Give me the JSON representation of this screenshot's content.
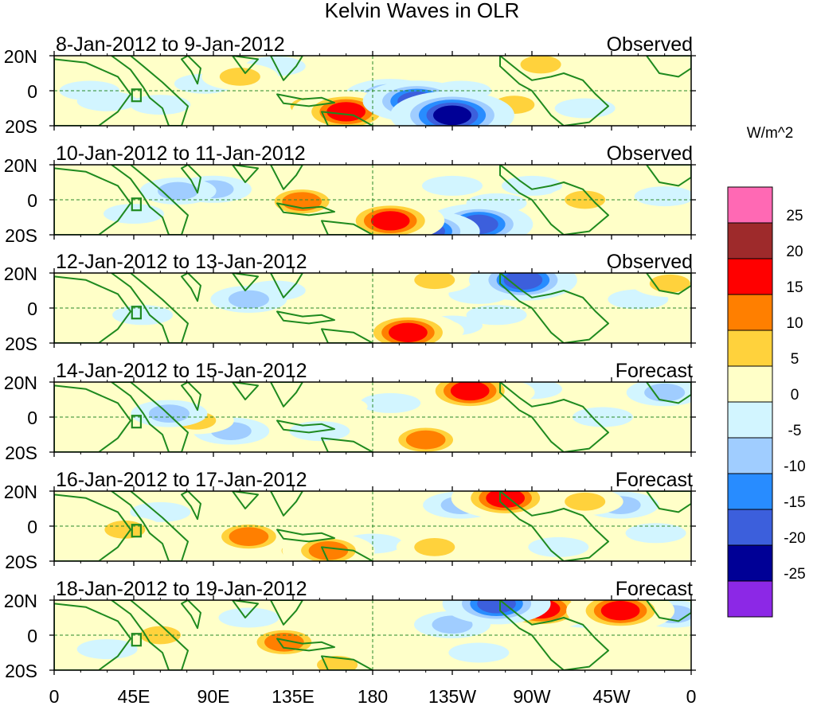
{
  "title": "Kelvin Waves in OLR",
  "colorbar": {
    "units": "W/m^2",
    "bins": [
      {
        "color": "#ff69b4"
      },
      {
        "color": "#9e2a2b"
      },
      {
        "color": "#ff0000"
      },
      {
        "color": "#ff7f00"
      },
      {
        "color": "#ffd23c"
      },
      {
        "color": "#ffffc8"
      },
      {
        "color": "#d2f5ff"
      },
      {
        "color": "#a0cdff"
      },
      {
        "color": "#288cff"
      },
      {
        "color": "#3c5fdc"
      },
      {
        "color": "#000096"
      },
      {
        "color": "#8c28e6"
      }
    ],
    "tick_labels": [
      "25",
      "20",
      "15",
      "10",
      "5",
      "0",
      "-5",
      "-10",
      "-15",
      "-20",
      "-25"
    ]
  },
  "y_axis_labels": [
    "20N",
    "0",
    "20S"
  ],
  "x_axis_labels": [
    "0",
    "45E",
    "90E",
    "135E",
    "180",
    "135W",
    "90W",
    "45W",
    "0"
  ],
  "chart_data": {
    "type": "heatmap",
    "title": "Kelvin Waves in OLR",
    "units": "W/m^2",
    "x_range_lon": [
      0,
      360
    ],
    "y_range_lat": [
      -20,
      20
    ],
    "levels": [
      -25,
      -20,
      -15,
      -10,
      -5,
      0,
      5,
      10,
      15,
      20,
      25
    ],
    "panels": [
      {
        "label": "8-Jan-2012 to 9-Jan-2012",
        "type": "Observed",
        "blobs": [
          {
            "lon": 205,
            "lat": -6,
            "value": -24
          },
          {
            "lon": 225,
            "lat": -14,
            "value": -26
          },
          {
            "lon": 190,
            "lat": -3,
            "value": -18
          },
          {
            "lon": 165,
            "lat": -12,
            "value": 20
          },
          {
            "lon": 145,
            "lat": -9,
            "value": 12
          },
          {
            "lon": 260,
            "lat": -8,
            "value": 14
          },
          {
            "lon": 250,
            "lat": 10,
            "value": 8
          },
          {
            "lon": 275,
            "lat": 15,
            "value": 10
          },
          {
            "lon": 105,
            "lat": 8,
            "value": 12
          },
          {
            "lon": 85,
            "lat": 4,
            "value": -7
          },
          {
            "lon": 60,
            "lat": -8,
            "value": -8
          },
          {
            "lon": 20,
            "lat": 0,
            "value": -5
          },
          {
            "lon": 30,
            "lat": -6,
            "value": -9
          },
          {
            "lon": 340,
            "lat": 12,
            "value": 8
          },
          {
            "lon": 315,
            "lat": 0,
            "value": 6
          },
          {
            "lon": 230,
            "lat": 0,
            "value": -9
          },
          {
            "lon": 300,
            "lat": -10,
            "value": -6
          },
          {
            "lon": 125,
            "lat": 14,
            "value": -6
          }
        ]
      },
      {
        "label": "10-Jan-2012 to 11-Jan-2012",
        "type": "Observed",
        "blobs": [
          {
            "lon": 190,
            "lat": -12,
            "value": 23
          },
          {
            "lon": 200,
            "lat": -14,
            "value": 18
          },
          {
            "lon": 210,
            "lat": -18,
            "value": -22
          },
          {
            "lon": 240,
            "lat": -14,
            "value": -20
          },
          {
            "lon": 140,
            "lat": -1,
            "value": 16
          },
          {
            "lon": 120,
            "lat": 6,
            "value": 8
          },
          {
            "lon": 70,
            "lat": 5,
            "value": -12
          },
          {
            "lon": 90,
            "lat": 6,
            "value": -10
          },
          {
            "lon": 300,
            "lat": 0,
            "value": 12
          },
          {
            "lon": 320,
            "lat": 14,
            "value": 9
          },
          {
            "lon": 270,
            "lat": 8,
            "value": -8
          },
          {
            "lon": 250,
            "lat": -2,
            "value": -7
          },
          {
            "lon": 45,
            "lat": -8,
            "value": -8
          },
          {
            "lon": 20,
            "lat": 2,
            "value": 6
          },
          {
            "lon": 345,
            "lat": 2,
            "value": -9
          },
          {
            "lon": 170,
            "lat": 12,
            "value": 7
          },
          {
            "lon": 225,
            "lat": 8,
            "value": -6
          },
          {
            "lon": 10,
            "lat": -10,
            "value": 5
          }
        ]
      },
      {
        "label": "12-Jan-2012 to 13-Jan-2012",
        "type": "Observed",
        "blobs": [
          {
            "lon": 200,
            "lat": -14,
            "value": 24
          },
          {
            "lon": 210,
            "lat": -13,
            "value": 14
          },
          {
            "lon": 215,
            "lat": 16,
            "value": 12
          },
          {
            "lon": 265,
            "lat": 16,
            "value": -20
          },
          {
            "lon": 240,
            "lat": 8,
            "value": -8
          },
          {
            "lon": 225,
            "lat": -10,
            "value": -9
          },
          {
            "lon": 110,
            "lat": 5,
            "value": -14
          },
          {
            "lon": 125,
            "lat": 10,
            "value": -8
          },
          {
            "lon": 140,
            "lat": -6,
            "value": 7
          },
          {
            "lon": 285,
            "lat": 16,
            "value": 8
          },
          {
            "lon": 305,
            "lat": -3,
            "value": 9
          },
          {
            "lon": 348,
            "lat": 14,
            "value": 12
          },
          {
            "lon": 25,
            "lat": -4,
            "value": 7
          },
          {
            "lon": 50,
            "lat": -4,
            "value": -7
          },
          {
            "lon": 80,
            "lat": -10,
            "value": 7
          },
          {
            "lon": 180,
            "lat": 5,
            "value": 6
          },
          {
            "lon": 330,
            "lat": 5,
            "value": -8
          },
          {
            "lon": 250,
            "lat": -4,
            "value": -6
          }
        ]
      },
      {
        "label": "14-Jan-2012 to 15-Jan-2012",
        "type": "Forecast",
        "blobs": [
          {
            "lon": 235,
            "lat": 15,
            "value": 22
          },
          {
            "lon": 250,
            "lat": 14,
            "value": 12
          },
          {
            "lon": 210,
            "lat": -13,
            "value": 16
          },
          {
            "lon": 240,
            "lat": -8,
            "value": 9
          },
          {
            "lon": 270,
            "lat": 16,
            "value": -9
          },
          {
            "lon": 345,
            "lat": 14,
            "value": -14
          },
          {
            "lon": 80,
            "lat": -2,
            "value": 12
          },
          {
            "lon": 65,
            "lat": 2,
            "value": -12
          },
          {
            "lon": 100,
            "lat": -8,
            "value": -10
          },
          {
            "lon": 125,
            "lat": 4,
            "value": 8
          },
          {
            "lon": 160,
            "lat": 6,
            "value": 7
          },
          {
            "lon": 30,
            "lat": -6,
            "value": 9
          },
          {
            "lon": 310,
            "lat": 0,
            "value": -7
          },
          {
            "lon": 295,
            "lat": -12,
            "value": 6
          },
          {
            "lon": 20,
            "lat": 12,
            "value": 5
          },
          {
            "lon": 190,
            "lat": 8,
            "value": -6
          },
          {
            "lon": 150,
            "lat": -8,
            "value": -6
          },
          {
            "lon": 330,
            "lat": -8,
            "value": 6
          }
        ]
      },
      {
        "label": "16-Jan-2012 to 17-Jan-2012",
        "type": "Forecast",
        "blobs": [
          {
            "lon": 255,
            "lat": 16,
            "value": 24
          },
          {
            "lon": 270,
            "lat": 15,
            "value": 12
          },
          {
            "lon": 300,
            "lat": 14,
            "value": 14
          },
          {
            "lon": 320,
            "lat": 12,
            "value": -12
          },
          {
            "lon": 230,
            "lat": 12,
            "value": -14
          },
          {
            "lon": 215,
            "lat": -12,
            "value": 14
          },
          {
            "lon": 250,
            "lat": -8,
            "value": 7
          },
          {
            "lon": 180,
            "lat": -10,
            "value": -7
          },
          {
            "lon": 155,
            "lat": -14,
            "value": 16
          },
          {
            "lon": 140,
            "lat": -14,
            "value": 12
          },
          {
            "lon": 110,
            "lat": -6,
            "value": 15
          },
          {
            "lon": 90,
            "lat": -6,
            "value": 8
          },
          {
            "lon": 40,
            "lat": -2,
            "value": 12
          },
          {
            "lon": 60,
            "lat": 8,
            "value": -9
          },
          {
            "lon": 80,
            "lat": 12,
            "value": 7
          },
          {
            "lon": 15,
            "lat": 10,
            "value": 6
          },
          {
            "lon": 340,
            "lat": -4,
            "value": -6
          },
          {
            "lon": 285,
            "lat": -12,
            "value": -7
          }
        ]
      },
      {
        "label": "18-Jan-2012 to 19-Jan-2012",
        "type": "Forecast",
        "blobs": [
          {
            "lon": 275,
            "lat": 15,
            "value": 20
          },
          {
            "lon": 320,
            "lat": 14,
            "value": 20
          },
          {
            "lon": 250,
            "lat": 18,
            "value": -20
          },
          {
            "lon": 300,
            "lat": 12,
            "value": -10
          },
          {
            "lon": 350,
            "lat": 12,
            "value": -12
          },
          {
            "lon": 225,
            "lat": 6,
            "value": -10
          },
          {
            "lon": 60,
            "lat": 0,
            "value": 14
          },
          {
            "lon": 130,
            "lat": -4,
            "value": 16
          },
          {
            "lon": 160,
            "lat": -17,
            "value": 12
          },
          {
            "lon": 95,
            "lat": -4,
            "value": 7
          },
          {
            "lon": 110,
            "lat": 10,
            "value": -8
          },
          {
            "lon": 30,
            "lat": -8,
            "value": -7
          },
          {
            "lon": 10,
            "lat": 10,
            "value": 6
          },
          {
            "lon": 200,
            "lat": -12,
            "value": 6
          },
          {
            "lon": 240,
            "lat": -10,
            "value": -7
          },
          {
            "lon": 290,
            "lat": -6,
            "value": 7
          },
          {
            "lon": 180,
            "lat": 10,
            "value": 6
          },
          {
            "lon": 340,
            "lat": -6,
            "value": 6
          }
        ]
      }
    ]
  }
}
